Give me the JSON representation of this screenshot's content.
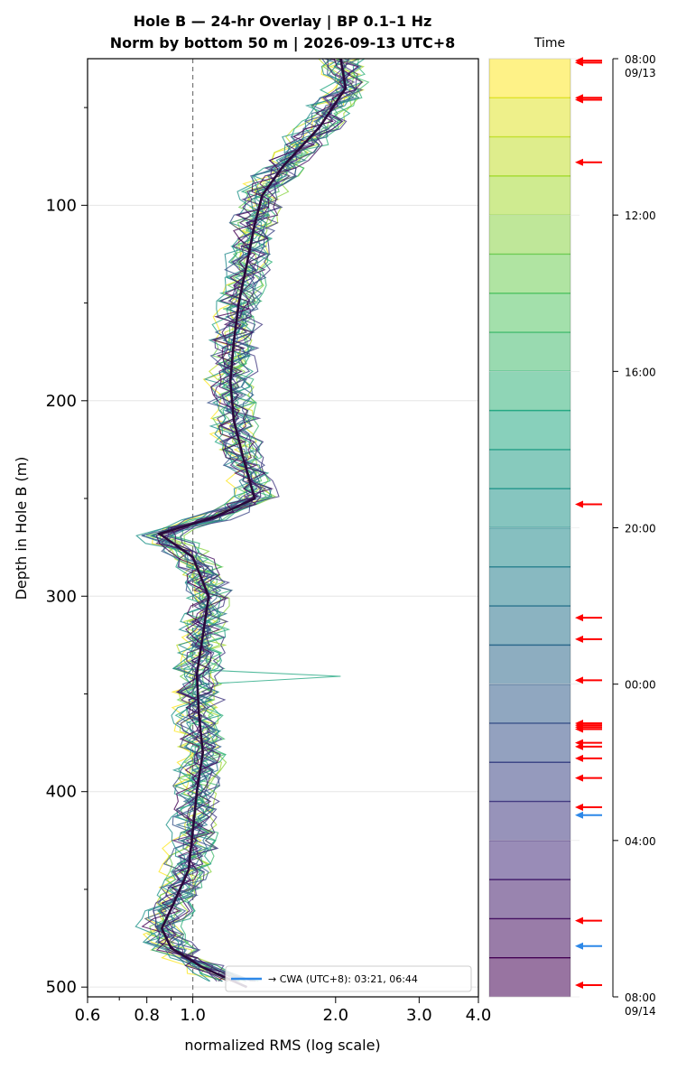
{
  "chart_data": {
    "type": "line",
    "title": {
      "line1": "Hole B — 24-hr Overlay  |  BP 0.1–1 Hz",
      "line2": "Norm by bottom 50 m  |  2026-09-13 UTC+8"
    },
    "xlabel": "normalized RMS  (log scale)",
    "ylabel": "Depth in Hole B (m)",
    "x_scale": "log",
    "xlim": [
      0.6,
      4.0
    ],
    "ylim": [
      505,
      25
    ],
    "x_ticks": [
      "0.6",
      "0.8",
      "1.0",
      "2.0",
      "3.0",
      "4.0"
    ],
    "x_tick_values": [
      0.6,
      0.8,
      1.0,
      2.0,
      3.0,
      4.0
    ],
    "y_ticks": [
      "100",
      "200",
      "300",
      "400",
      "500"
    ],
    "y_tick_values": [
      100,
      200,
      300,
      400,
      500
    ],
    "grid": "horizontal",
    "reference_line_x": 1.0,
    "median_profile": {
      "depth": [
        25,
        40,
        60,
        80,
        95,
        110,
        130,
        150,
        170,
        190,
        210,
        230,
        250,
        260,
        268,
        280,
        300,
        320,
        340,
        360,
        380,
        400,
        420,
        440,
        460,
        470,
        480,
        490,
        500
      ],
      "rms": [
        2.05,
        2.1,
        1.85,
        1.55,
        1.4,
        1.35,
        1.3,
        1.25,
        1.22,
        1.2,
        1.22,
        1.28,
        1.35,
        1.1,
        0.85,
        1.0,
        1.08,
        1.05,
        1.02,
        1.03,
        1.05,
        1.02,
        1.0,
        0.98,
        0.9,
        0.86,
        0.9,
        1.05,
        1.3
      ]
    },
    "legend": {
      "entries": [
        "→ CWA (UTC+8): 03:21, 06:44"
      ],
      "placement": "lower-right",
      "color": "#2d88e8"
    },
    "colorbar": {
      "title": "Time",
      "colormap": "viridis-reversed",
      "tick_labels": [
        "08:00\n09/13",
        "12:00",
        "16:00",
        "20:00",
        "00:00",
        "04:00",
        "08:00\n09/14"
      ],
      "tick_hours": [
        0,
        4,
        8,
        12,
        16,
        20,
        24
      ],
      "bands": 24
    },
    "event_arrows": {
      "red_hours": [
        0.05,
        0.1,
        1.0,
        1.05,
        2.65,
        11.4,
        14.3,
        14.85,
        15.9,
        17.0,
        17.05,
        17.1,
        17.15,
        17.5,
        17.6,
        17.9,
        18.4,
        19.15,
        22.05,
        23.7
      ],
      "blue_hours": [
        19.35,
        22.7
      ],
      "red_color": "#ff0000",
      "blue_color": "#2d88e8"
    }
  }
}
